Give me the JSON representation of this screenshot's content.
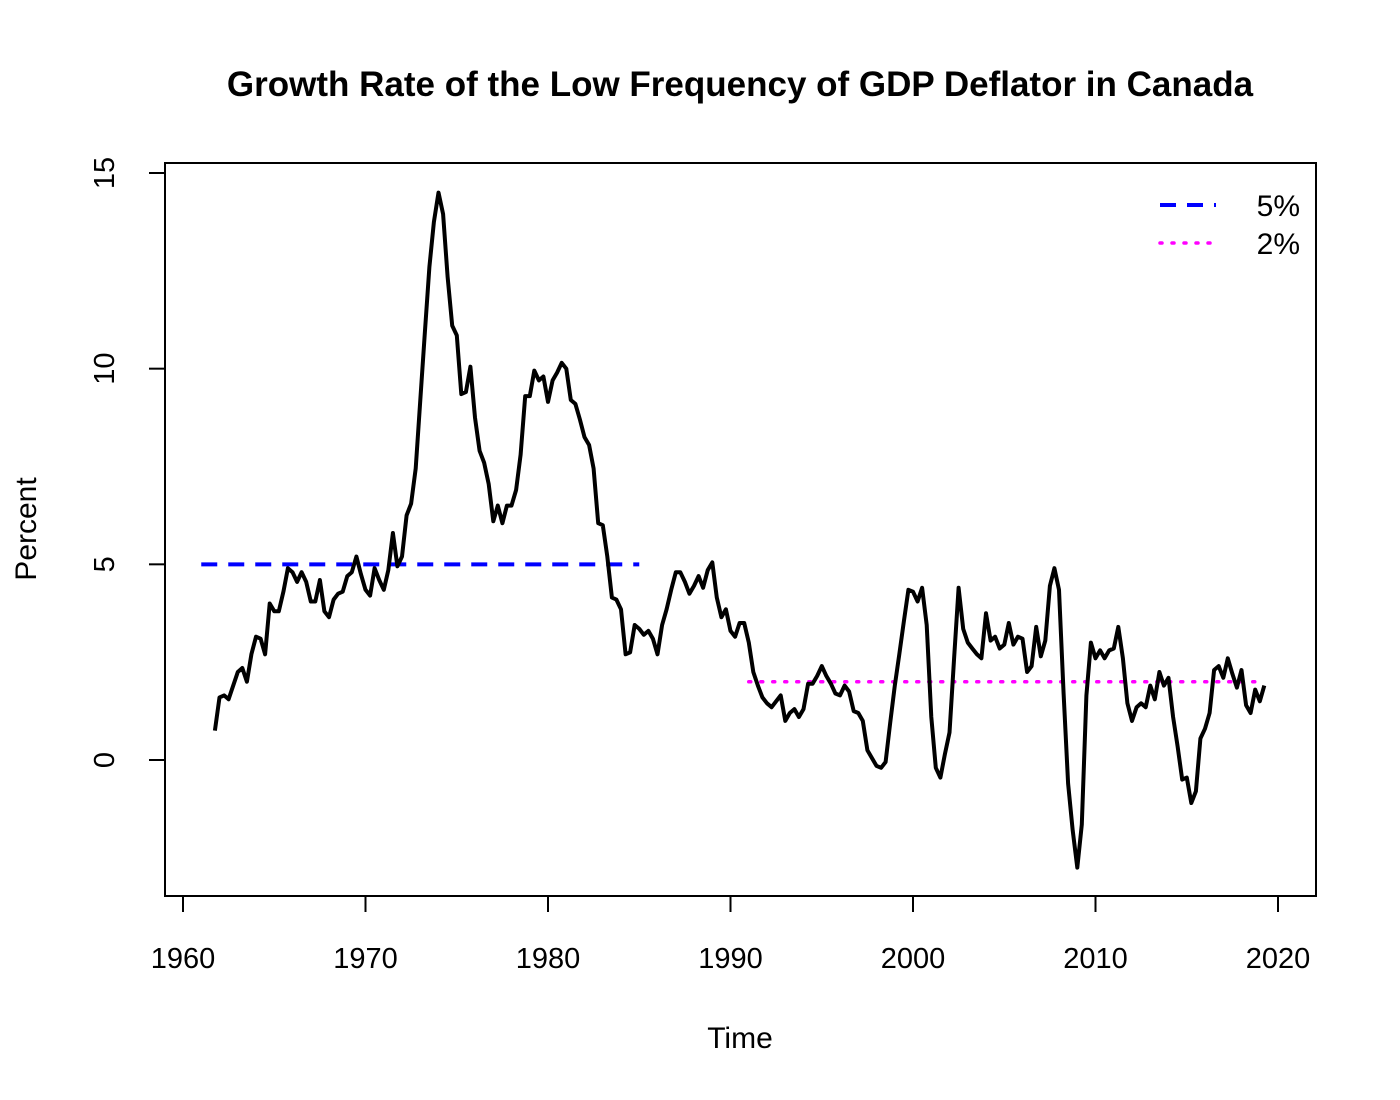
{
  "chart_data": {
    "type": "line",
    "title": "Growth Rate of the Low Frequency of GDP Deflator in Canada",
    "xlabel": "Time",
    "ylabel": "Percent",
    "xlim": [
      1960,
      2020
    ],
    "ylim": [
      -3,
      15
    ],
    "x_ticks": [
      1960,
      1970,
      1980,
      1990,
      2000,
      2010,
      2020
    ],
    "y_ticks": [
      0,
      5,
      10,
      15
    ],
    "grid": false,
    "legend_position": "top-right",
    "colors": {
      "main": "#000000",
      "ref5": "#0000ff",
      "ref2": "#ff00ff"
    },
    "series": [
      {
        "style": "solid",
        "x": [
          1961.75,
          1962.0,
          1962.25,
          1962.5,
          1962.75,
          1963.0,
          1963.25,
          1963.5,
          1963.75,
          1964.0,
          1964.25,
          1964.5,
          1964.75,
          1965.0,
          1965.25,
          1965.5,
          1965.75,
          1966.0,
          1966.25,
          1966.5,
          1966.75,
          1967.0,
          1967.25,
          1967.5,
          1967.75,
          1968.0,
          1968.25,
          1968.5,
          1968.75,
          1969.0,
          1969.25,
          1969.5,
          1969.75,
          1970.0,
          1970.25,
          1970.5,
          1970.75,
          1971.0,
          1971.25,
          1971.5,
          1971.75,
          1972.0,
          1972.25,
          1972.5,
          1972.75,
          1973.0,
          1973.25,
          1973.5,
          1973.75,
          1974.0,
          1974.25,
          1974.5,
          1974.75,
          1975.0,
          1975.25,
          1975.5,
          1975.75,
          1976.0,
          1976.25,
          1976.5,
          1976.75,
          1977.0,
          1977.25,
          1977.5,
          1977.75,
          1978.0,
          1978.25,
          1978.5,
          1978.75,
          1979.0,
          1979.25,
          1979.5,
          1979.75,
          1980.0,
          1980.25,
          1980.5,
          1980.75,
          1981.0,
          1981.25,
          1981.5,
          1981.75,
          1982.0,
          1982.25,
          1982.5,
          1982.75,
          1983.0,
          1983.25,
          1983.5,
          1983.75,
          1984.0,
          1984.25,
          1984.5,
          1984.75,
          1985.0,
          1985.25,
          1985.5,
          1985.75,
          1986.0,
          1986.25,
          1986.5,
          1986.75,
          1987.0,
          1987.25,
          1987.5,
          1987.75,
          1988.0,
          1988.25,
          1988.5,
          1988.75,
          1989.0,
          1989.25,
          1989.5,
          1989.75,
          1990.0,
          1990.25,
          1990.5,
          1990.75,
          1991.0,
          1991.25,
          1991.5,
          1991.75,
          1992.0,
          1992.25,
          1992.5,
          1992.75,
          1993.0,
          1993.25,
          1993.5,
          1993.75,
          1994.0,
          1994.25,
          1994.5,
          1994.75,
          1995.0,
          1995.25,
          1995.5,
          1995.75,
          1996.0,
          1996.25,
          1996.5,
          1996.75,
          1997.0,
          1997.25,
          1997.5,
          1997.75,
          1998.0,
          1998.25,
          1998.5,
          1998.75,
          1999.0,
          1999.25,
          1999.5,
          1999.75,
          2000.0,
          2000.25,
          2000.5,
          2000.75,
          2001.0,
          2001.25,
          2001.5,
          2001.75,
          2002.0,
          2002.25,
          2002.5,
          2002.75,
          2003.0,
          2003.25,
          2003.5,
          2003.75,
          2004.0,
          2004.25,
          2004.5,
          2004.75,
          2005.0,
          2005.25,
          2005.5,
          2005.75,
          2006.0,
          2006.25,
          2006.5,
          2006.75,
          2007.0,
          2007.25,
          2007.5,
          2007.75,
          2008.0,
          2008.25,
          2008.5,
          2008.75,
          2009.0,
          2009.25,
          2009.5,
          2009.75,
          2010.0,
          2010.25,
          2010.5,
          2010.75,
          2011.0,
          2011.25,
          2011.5,
          2011.75,
          2012.0,
          2012.25,
          2012.5,
          2012.75,
          2013.0,
          2013.25,
          2013.5,
          2013.75,
          2014.0,
          2014.25,
          2014.5,
          2014.75,
          2015.0,
          2015.25,
          2015.5,
          2015.75,
          2016.0,
          2016.25,
          2016.5,
          2016.75,
          2017.0,
          2017.25,
          2017.5,
          2017.75,
          2018.0,
          2018.25,
          2018.5,
          2018.75,
          2019.0,
          2019.25
        ],
        "y": [
          0.75,
          1.6,
          1.65,
          1.55,
          1.9,
          2.25,
          2.35,
          2.0,
          2.7,
          3.15,
          3.1,
          2.7,
          4.0,
          3.8,
          3.8,
          4.3,
          4.9,
          4.8,
          4.55,
          4.8,
          4.55,
          4.05,
          4.05,
          4.6,
          3.8,
          3.65,
          4.1,
          4.25,
          4.3,
          4.7,
          4.8,
          5.2,
          4.75,
          4.35,
          4.2,
          4.9,
          4.6,
          4.35,
          4.85,
          5.8,
          4.95,
          5.2,
          6.25,
          6.55,
          7.45,
          9.2,
          10.9,
          12.6,
          13.75,
          14.5,
          13.95,
          12.35,
          11.1,
          10.85,
          9.35,
          9.4,
          10.05,
          8.75,
          7.9,
          7.6,
          7.05,
          6.1,
          6.5,
          6.05,
          6.5,
          6.5,
          6.9,
          7.8,
          9.3,
          9.3,
          9.95,
          9.7,
          9.8,
          9.15,
          9.7,
          9.9,
          10.15,
          10.0,
          9.2,
          9.1,
          8.7,
          8.25,
          8.05,
          7.45,
          6.05,
          6.0,
          5.2,
          4.15,
          4.1,
          3.85,
          2.7,
          2.75,
          3.45,
          3.35,
          3.2,
          3.3,
          3.1,
          2.7,
          3.45,
          3.85,
          4.35,
          4.8,
          4.8,
          4.55,
          4.25,
          4.45,
          4.7,
          4.4,
          4.85,
          5.05,
          4.15,
          3.65,
          3.85,
          3.3,
          3.15,
          3.5,
          3.5,
          3.0,
          2.25,
          1.9,
          1.6,
          1.45,
          1.35,
          1.5,
          1.65,
          1.0,
          1.2,
          1.3,
          1.1,
          1.3,
          1.95,
          1.95,
          2.15,
          2.4,
          2.15,
          1.95,
          1.7,
          1.65,
          1.9,
          1.75,
          1.25,
          1.2,
          1.0,
          0.25,
          0.05,
          -0.15,
          -0.2,
          -0.05,
          0.95,
          1.9,
          2.7,
          3.55,
          4.35,
          4.3,
          4.05,
          4.4,
          3.45,
          1.1,
          -0.2,
          -0.45,
          0.15,
          0.7,
          2.6,
          4.4,
          3.35,
          3.0,
          2.85,
          2.7,
          2.6,
          3.75,
          3.05,
          3.15,
          2.85,
          2.95,
          3.5,
          2.95,
          3.15,
          3.1,
          2.25,
          2.4,
          3.4,
          2.65,
          3.05,
          4.45,
          4.9,
          4.35,
          1.7,
          -0.6,
          -1.8,
          -2.75,
          -1.65,
          1.65,
          3.0,
          2.6,
          2.8,
          2.6,
          2.8,
          2.85,
          3.4,
          2.6,
          1.45,
          1.0,
          1.35,
          1.45,
          1.35,
          1.9,
          1.55,
          2.25,
          1.9,
          2.1,
          1.1,
          0.35,
          -0.5,
          -0.45,
          -1.1,
          -0.8,
          0.55,
          0.8,
          1.2,
          2.3,
          2.4,
          2.1,
          2.6,
          2.2,
          1.85,
          2.3,
          1.4,
          1.2,
          1.8,
          1.5,
          1.9
        ]
      }
    ],
    "reference_lines": [
      {
        "name": "5%",
        "y": 5,
        "x_start": 1961,
        "x_end": 1985,
        "style": "dashed",
        "color": "#0000ff"
      },
      {
        "name": "2%",
        "y": 2,
        "x_start": 1991,
        "x_end": 2019.25,
        "style": "dotted",
        "color": "#ff00ff"
      }
    ]
  }
}
